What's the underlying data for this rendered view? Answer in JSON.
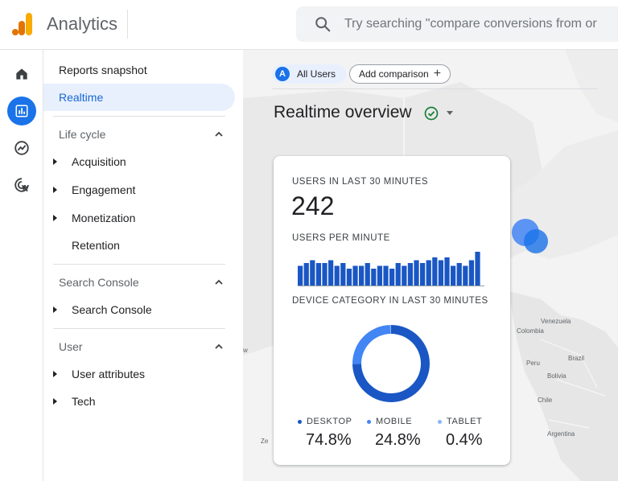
{
  "header": {
    "app_title": "Analytics",
    "search_placeholder": "Try searching \"compare conversions from or"
  },
  "rail": {
    "items": [
      {
        "name": "home-icon"
      },
      {
        "name": "reports-icon",
        "active": true
      },
      {
        "name": "explore-icon"
      },
      {
        "name": "advertising-icon"
      }
    ]
  },
  "nav": {
    "reports_snapshot": "Reports snapshot",
    "realtime": "Realtime",
    "life_cycle": {
      "title": "Life cycle",
      "items": [
        "Acquisition",
        "Engagement",
        "Monetization",
        "Retention"
      ]
    },
    "search_console": {
      "title": "Search Console",
      "items": [
        "Search Console"
      ]
    },
    "user": {
      "title": "User",
      "items": [
        "User attributes",
        "Tech"
      ]
    }
  },
  "toolbar": {
    "segment_avatar": "A",
    "segment_label": "All Users",
    "add_comparison": "Add comparison"
  },
  "page": {
    "title": "Realtime overview"
  },
  "card": {
    "users_label": "USERS IN LAST 30 MINUTES",
    "users_value": "242",
    "per_minute_label": "USERS PER MINUTE",
    "device_label": "DEVICE CATEGORY IN LAST 30 MINUTES"
  },
  "map_labels": {
    "venezuela": "Venezuela",
    "colombia": "Colombia",
    "peru": "Peru",
    "brazil": "Brazil",
    "bolivia": "Bolivia",
    "chile": "Chile",
    "argentina": "Argentina",
    "edge_w": "w",
    "edge_ze": "Ze"
  },
  "chart_data": [
    {
      "type": "bar",
      "title": "USERS PER MINUTE",
      "values": [
        7,
        8,
        9,
        8,
        8,
        9,
        7,
        8,
        6,
        7,
        7,
        8,
        6,
        7,
        7,
        6,
        8,
        7,
        8,
        9,
        8,
        9,
        10,
        9,
        10,
        7,
        8,
        7,
        9,
        12
      ],
      "ylim": [
        0,
        12
      ]
    },
    {
      "type": "pie",
      "title": "DEVICE CATEGORY IN LAST 30 MINUTES",
      "categories": [
        "DESKTOP",
        "MOBILE",
        "TABLET"
      ],
      "values": [
        74.8,
        24.8,
        0.4
      ],
      "labels": [
        "74.8%",
        "24.8%",
        "0.4%"
      ],
      "colors": [
        "#1a57c4",
        "#4285f4",
        "#8ab4f8"
      ]
    }
  ],
  "colors": {
    "accent": "#1a73e8",
    "bar": "#1a57c4",
    "logo_orange": "#f9ab00",
    "logo_dark": "#e37400",
    "check_green": "#188038"
  }
}
